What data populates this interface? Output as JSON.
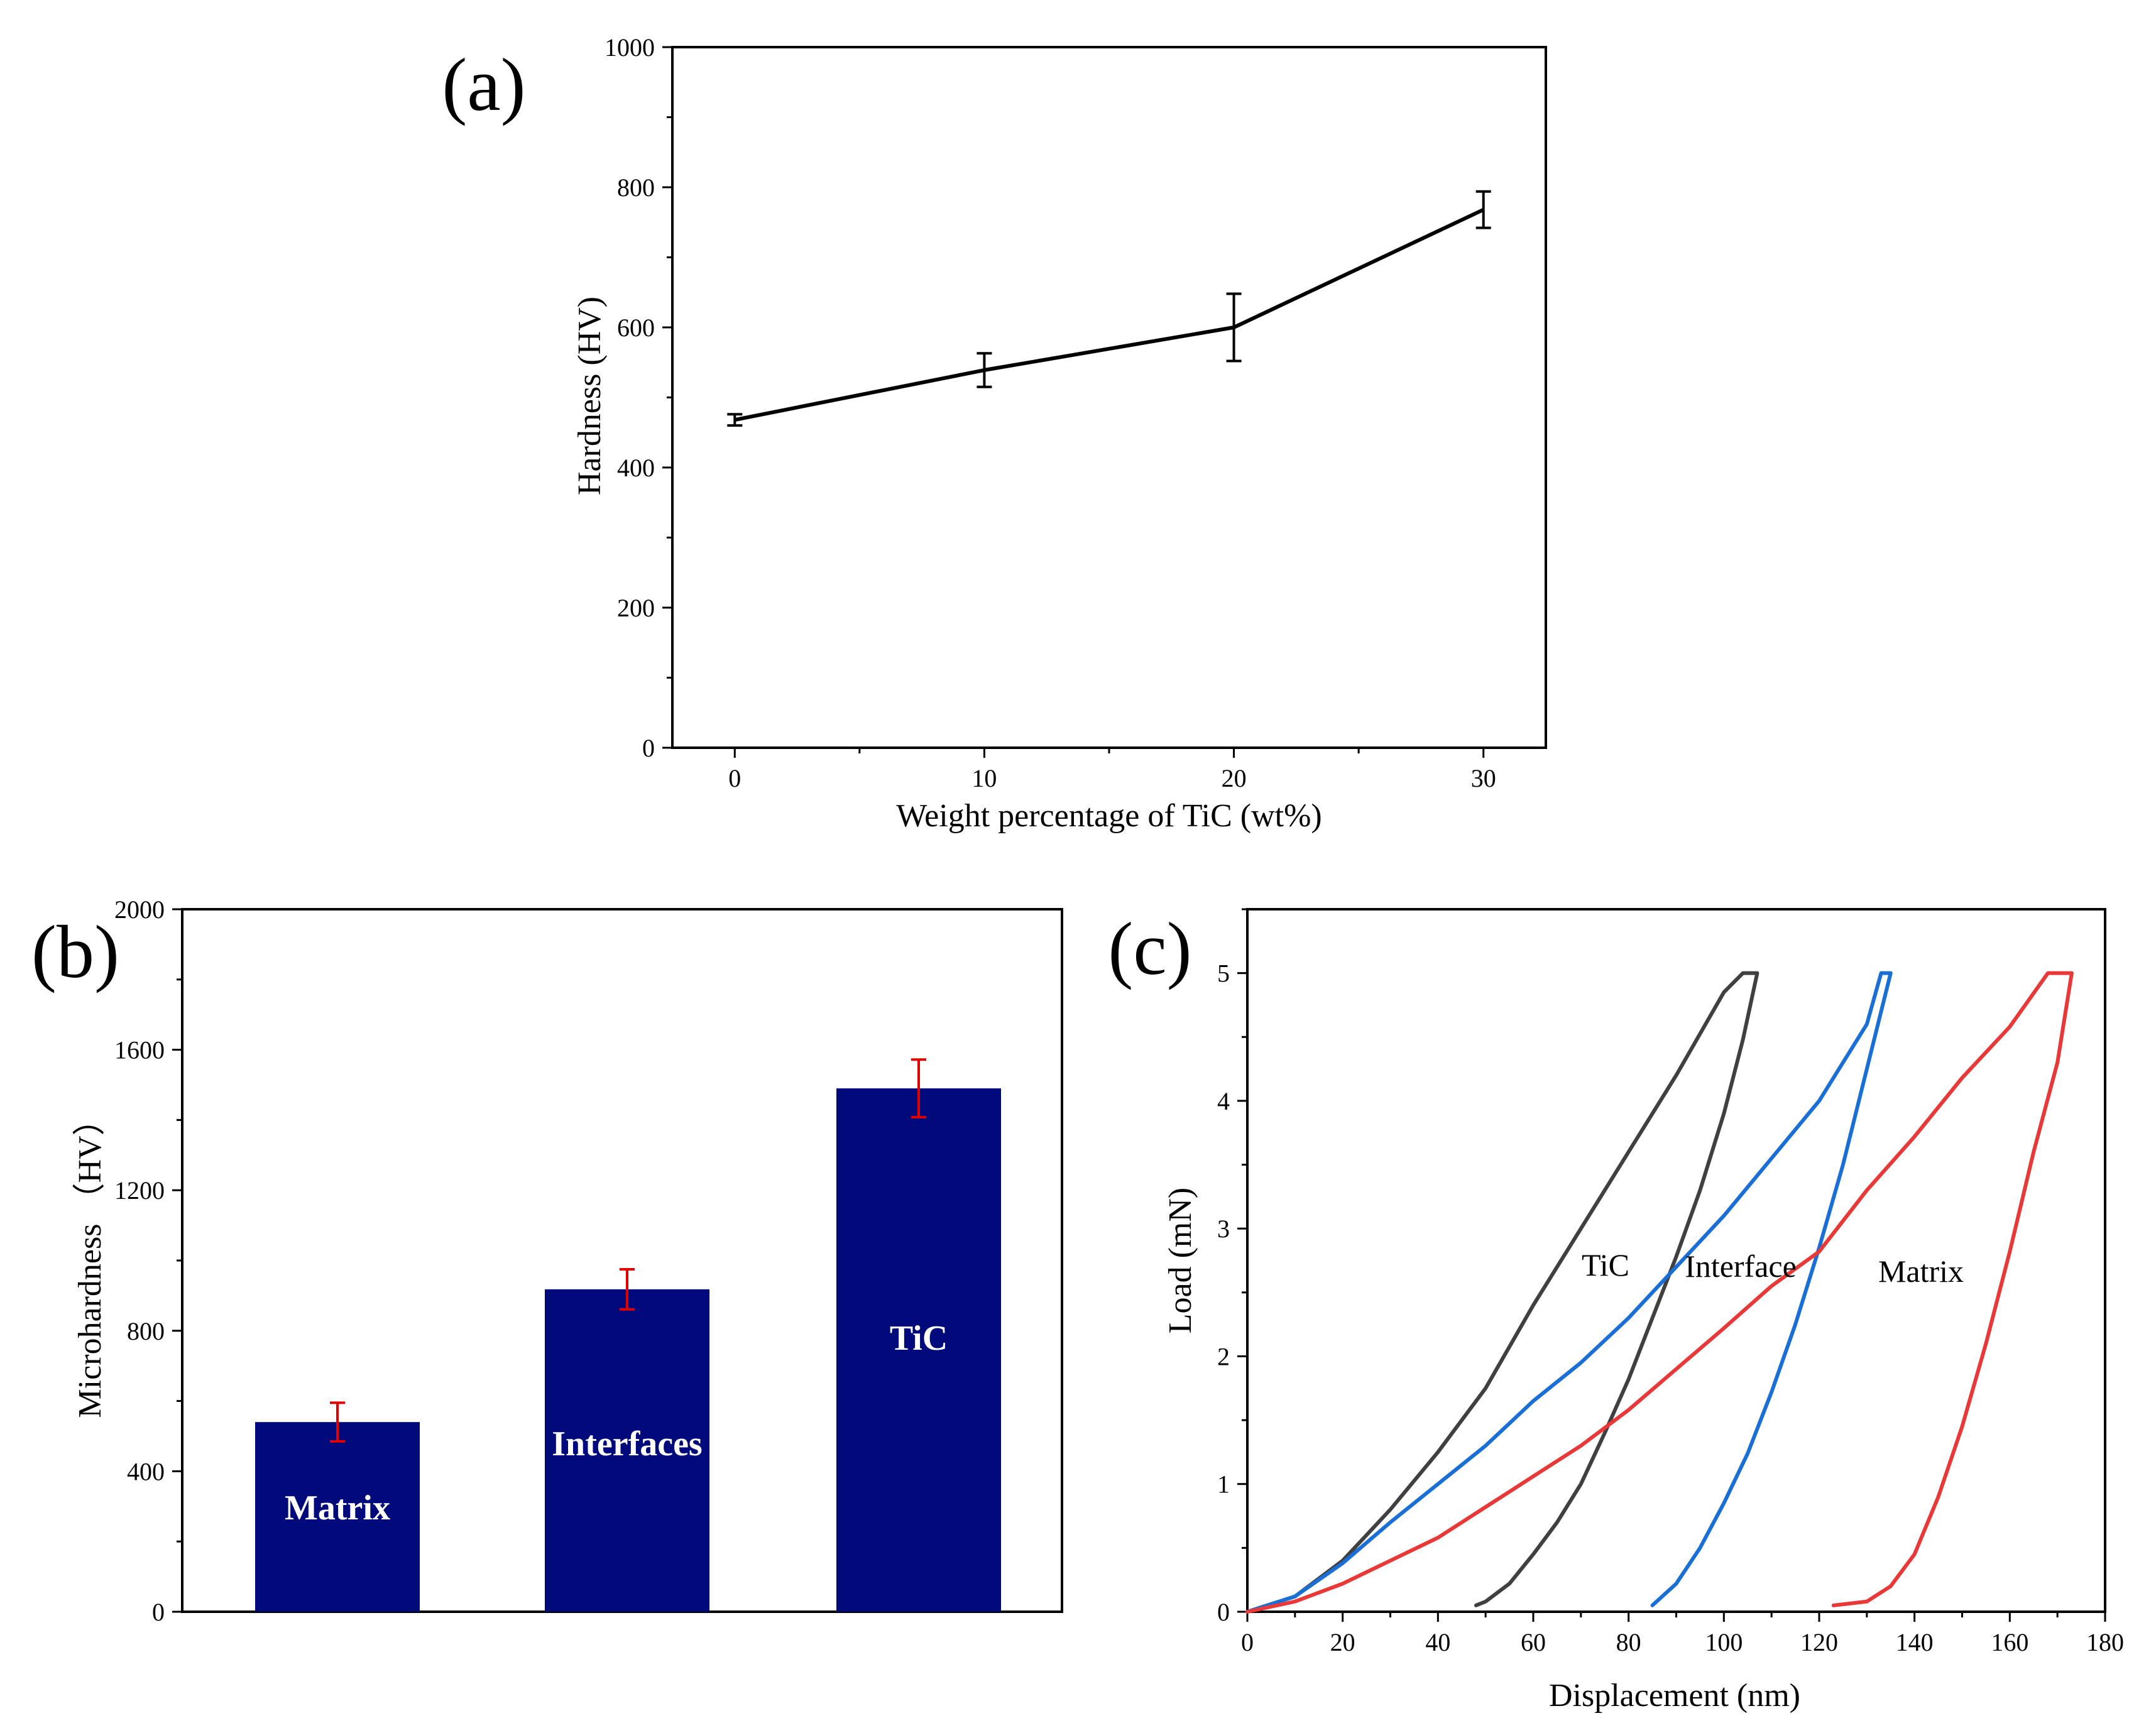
{
  "chart_data": [
    {
      "panel": "(a)",
      "type": "line",
      "xlabel": "Weight percentage of TiC (wt%)",
      "ylabel": "Hardness (HV)",
      "xlim": [
        -2.5,
        32.5
      ],
      "ylim": [
        0,
        1000
      ],
      "xticks": [
        0,
        10,
        20,
        30
      ],
      "yticks": [
        0,
        200,
        400,
        600,
        800,
        1000
      ],
      "series": [
        {
          "x": [
            0,
            10,
            20,
            30
          ],
          "y": [
            468,
            539,
            600,
            768
          ],
          "err": [
            8,
            24,
            48,
            26
          ],
          "color": "#000000"
        }
      ]
    },
    {
      "panel": "(b)",
      "type": "bar",
      "categories": [
        "Matrix",
        "Interfaces",
        "TiC"
      ],
      "values": [
        540,
        918,
        1490
      ],
      "errors": [
        55,
        57,
        82
      ],
      "ylabel": "Microhardness （HV）",
      "ylim": [
        0,
        2000
      ],
      "yticks": [
        0,
        400,
        800,
        1200,
        1600,
        2000
      ],
      "bar_color": "#000a7a",
      "error_color": "#e00000"
    },
    {
      "panel": "(c)",
      "type": "line",
      "xlabel": "Displacement (nm)",
      "ylabel": "Load (mN)",
      "xlim": [
        0,
        180
      ],
      "ylim": [
        0,
        5.5
      ],
      "xticks": [
        0,
        20,
        40,
        60,
        80,
        100,
        120,
        140,
        160,
        180
      ],
      "yticks": [
        0,
        1,
        2,
        3,
        4,
        5
      ],
      "series": [
        {
          "name": "TiC",
          "color": "#404040",
          "x": [
            0,
            10,
            20,
            30,
            40,
            50,
            60,
            70,
            80,
            90,
            100,
            104,
            107,
            104,
            100,
            95,
            90,
            85,
            80,
            75,
            70,
            65,
            60,
            55,
            50,
            48
          ],
          "y": [
            0,
            0.12,
            0.4,
            0.8,
            1.25,
            1.75,
            2.4,
            3.0,
            3.6,
            4.2,
            4.85,
            5.0,
            5.0,
            4.48,
            3.9,
            3.3,
            2.78,
            2.3,
            1.82,
            1.4,
            1.0,
            0.7,
            0.45,
            0.22,
            0.08,
            0.05
          ]
        },
        {
          "name": "Interface",
          "color": "#1a6fd6",
          "x": [
            0,
            10,
            20,
            30,
            40,
            50,
            60,
            70,
            80,
            90,
            100,
            110,
            120,
            130,
            133,
            135,
            130,
            125,
            120,
            115,
            110,
            105,
            100,
            95,
            90,
            85
          ],
          "y": [
            0,
            0.12,
            0.38,
            0.7,
            1.0,
            1.3,
            1.65,
            1.95,
            2.3,
            2.7,
            3.1,
            3.55,
            4.0,
            4.6,
            5.0,
            5.0,
            4.25,
            3.5,
            2.85,
            2.25,
            1.72,
            1.24,
            0.85,
            0.5,
            0.22,
            0.05
          ]
        },
        {
          "name": "Matrix",
          "color": "#e83838",
          "x": [
            0,
            10,
            20,
            30,
            40,
            50,
            60,
            70,
            80,
            90,
            100,
            110,
            120,
            130,
            140,
            150,
            160,
            168,
            173,
            170,
            165,
            160,
            155,
            150,
            145,
            140,
            135,
            130,
            123
          ],
          "y": [
            0,
            0.08,
            0.22,
            0.4,
            0.58,
            0.82,
            1.06,
            1.3,
            1.58,
            1.9,
            2.22,
            2.55,
            2.82,
            3.3,
            3.72,
            4.18,
            4.58,
            5.0,
            5.0,
            4.3,
            3.6,
            2.82,
            2.1,
            1.45,
            0.9,
            0.45,
            0.2,
            0.08,
            0.05
          ]
        }
      ],
      "annotations": [
        "TiC",
        "Interface",
        "Matrix"
      ]
    }
  ]
}
